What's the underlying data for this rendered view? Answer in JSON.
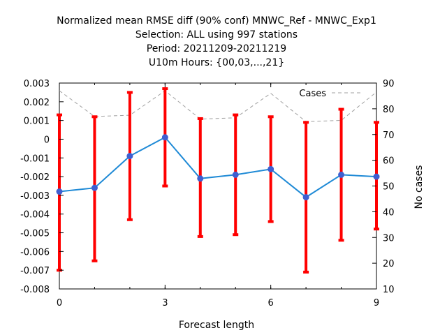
{
  "chart_data": {
    "type": "line",
    "title_lines": [
      "Normalized mean RMSE diff (90% conf) MNWC_Ref - MNWC_Exp1",
      "Selection: ALL using   997 stations",
      "Period: 20211209-20211219",
      "U10m   Hours: {00,03,...,21}"
    ],
    "xlabel": "Forecast length",
    "ylabel": "",
    "y2label": "No cases",
    "xlim": [
      0,
      9
    ],
    "ylim": [
      -0.008,
      0.003
    ],
    "y2lim": [
      10,
      90
    ],
    "x_ticks": [
      "0",
      "3",
      "6",
      "9"
    ],
    "y_ticks": [
      "0.003",
      "0.002",
      "0.001",
      "0",
      "-0.001",
      "-0.002",
      "-0.003",
      "-0.004",
      "-0.005",
      "-0.006",
      "-0.007",
      "-0.008"
    ],
    "y2_ticks": [
      "90",
      "80",
      "70",
      "60",
      "50",
      "40",
      "30",
      "20",
      "10"
    ],
    "x": [
      0,
      1,
      2,
      3,
      4,
      5,
      6,
      7,
      8,
      9
    ],
    "mean": [
      -0.0028,
      -0.0026,
      -0.0009,
      0.0001,
      -0.0021,
      -0.0019,
      -0.0016,
      -0.0031,
      -0.0019,
      -0.002
    ],
    "err_low": [
      -0.007,
      -0.0065,
      -0.0043,
      -0.0025,
      -0.0052,
      -0.0051,
      -0.0044,
      -0.0071,
      -0.0054,
      -0.0048
    ],
    "err_high": [
      0.0013,
      0.0012,
      0.0025,
      0.0027,
      0.0011,
      0.0013,
      0.0012,
      0.0009,
      0.0016,
      0.0009
    ],
    "cases_series_name": "Cases",
    "cases": [
      87,
      77,
      77.5,
      87,
      76,
      76.5,
      86,
      75,
      75.5,
      86.5
    ],
    "legend_position": "top-right",
    "grid": false,
    "colors": {
      "mean_line": "#1f8ad6",
      "mean_marker": "#3f5fd0",
      "error_bars": "#ff0000",
      "cases_line": "#a0a0a0"
    }
  }
}
